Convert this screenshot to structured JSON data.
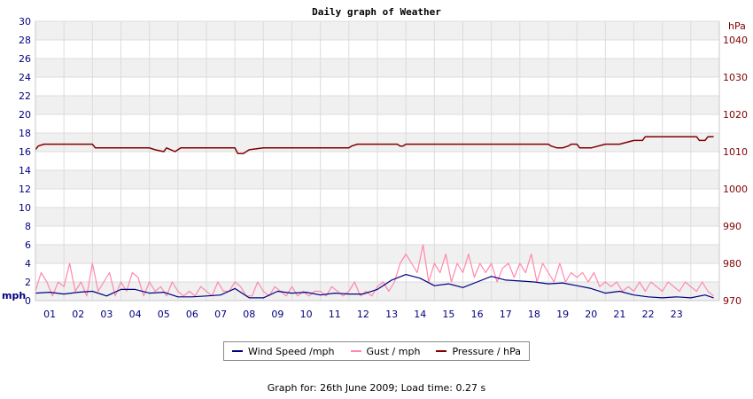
{
  "chart_data": {
    "type": "line",
    "title": "Daily graph of Weather",
    "ylabel_left": "mph",
    "ylabel_right": "hPa",
    "ylim_left": [
      0,
      30
    ],
    "yticks_left": [
      0,
      2,
      4,
      6,
      8,
      10,
      12,
      14,
      16,
      18,
      20,
      22,
      24,
      26,
      28,
      30
    ],
    "ylim_right": [
      970,
      1045
    ],
    "yticks_right": [
      970,
      980,
      990,
      1000,
      1010,
      1020,
      1030,
      1040
    ],
    "xlim": [
      0,
      24
    ],
    "x_ticks": [
      "01",
      "02",
      "03",
      "04",
      "05",
      "06",
      "07",
      "08",
      "09",
      "10",
      "11",
      "12",
      "13",
      "14",
      "15",
      "16",
      "17",
      "18",
      "19",
      "20",
      "21",
      "22",
      "23"
    ],
    "grid": true,
    "legend": "bottom",
    "series": [
      {
        "name": "Wind Speed /mph",
        "color": "#000080",
        "axis": "left",
        "x": [
          0.0,
          0.5,
          1.0,
          1.5,
          2.0,
          2.5,
          3.0,
          3.5,
          4.0,
          4.5,
          5.0,
          5.5,
          6.0,
          6.5,
          7.0,
          7.5,
          8.0,
          8.5,
          9.0,
          9.5,
          10.0,
          10.5,
          11.0,
          11.5,
          12.0,
          12.5,
          13.0,
          13.5,
          14.0,
          14.5,
          15.0,
          15.5,
          16.0,
          16.5,
          17.0,
          17.5,
          18.0,
          18.5,
          19.0,
          19.5,
          20.0,
          20.5,
          21.0,
          21.5,
          22.0,
          22.5,
          23.0,
          23.5,
          23.8
        ],
        "values": [
          0.8,
          0.9,
          0.7,
          0.9,
          1.0,
          0.5,
          1.2,
          1.2,
          0.8,
          0.9,
          0.4,
          0.4,
          0.5,
          0.6,
          1.3,
          0.3,
          0.3,
          1.0,
          0.8,
          0.9,
          0.6,
          0.8,
          0.7,
          0.7,
          1.2,
          2.2,
          2.8,
          2.4,
          1.6,
          1.8,
          1.4,
          2.0,
          2.6,
          2.2,
          2.1,
          2.0,
          1.8,
          1.9,
          1.6,
          1.3,
          0.8,
          1.0,
          0.6,
          0.4,
          0.3,
          0.4,
          0.3,
          0.6,
          0.3
        ]
      },
      {
        "name": "Gust / mph",
        "color": "#ff88aa",
        "axis": "left",
        "x": [
          0.0,
          0.2,
          0.4,
          0.6,
          0.8,
          1.0,
          1.2,
          1.4,
          1.6,
          1.8,
          2.0,
          2.2,
          2.4,
          2.6,
          2.8,
          3.0,
          3.2,
          3.4,
          3.6,
          3.8,
          4.0,
          4.2,
          4.4,
          4.6,
          4.8,
          5.0,
          5.2,
          5.4,
          5.6,
          5.8,
          6.0,
          6.2,
          6.4,
          6.6,
          6.8,
          7.0,
          7.2,
          7.4,
          7.6,
          7.8,
          8.0,
          8.2,
          8.4,
          8.6,
          8.8,
          9.0,
          9.2,
          9.4,
          9.6,
          9.8,
          10.0,
          10.2,
          10.4,
          10.6,
          10.8,
          11.0,
          11.2,
          11.4,
          11.6,
          11.8,
          12.0,
          12.2,
          12.4,
          12.6,
          12.8,
          13.0,
          13.2,
          13.4,
          13.6,
          13.8,
          14.0,
          14.2,
          14.4,
          14.6,
          14.8,
          15.0,
          15.2,
          15.4,
          15.6,
          15.8,
          16.0,
          16.2,
          16.4,
          16.6,
          16.8,
          17.0,
          17.2,
          17.4,
          17.6,
          17.8,
          18.0,
          18.2,
          18.4,
          18.6,
          18.8,
          19.0,
          19.2,
          19.4,
          19.6,
          19.8,
          20.0,
          20.2,
          20.4,
          20.6,
          20.8,
          21.0,
          21.2,
          21.4,
          21.6,
          21.8,
          22.0,
          22.2,
          22.4,
          22.6,
          22.8,
          23.0,
          23.2,
          23.4,
          23.6,
          23.8
        ],
        "values": [
          1.0,
          3.0,
          2.0,
          0.5,
          2.0,
          1.5,
          4.0,
          1.0,
          2.0,
          0.5,
          4.0,
          1.0,
          2.0,
          3.0,
          0.5,
          2.0,
          1.0,
          3.0,
          2.5,
          0.5,
          2.0,
          1.0,
          1.5,
          0.5,
          2.0,
          1.0,
          0.5,
          1.0,
          0.5,
          1.5,
          1.0,
          0.5,
          2.0,
          1.0,
          1.0,
          2.0,
          1.5,
          0.5,
          0.5,
          2.0,
          1.0,
          0.5,
          1.5,
          1.0,
          0.5,
          1.5,
          0.5,
          1.0,
          0.5,
          1.0,
          1.0,
          0.5,
          1.5,
          1.0,
          0.5,
          1.0,
          2.0,
          0.5,
          1.0,
          0.5,
          1.5,
          2.0,
          1.0,
          2.0,
          4.0,
          5.0,
          4.0,
          3.0,
          6.0,
          2.0,
          4.0,
          3.0,
          5.0,
          2.0,
          4.0,
          3.0,
          5.0,
          2.5,
          4.0,
          3.0,
          4.0,
          2.0,
          3.5,
          4.0,
          2.5,
          4.0,
          3.0,
          5.0,
          2.0,
          4.0,
          3.0,
          2.0,
          4.0,
          2.0,
          3.0,
          2.5,
          3.0,
          2.0,
          3.0,
          1.5,
          2.0,
          1.5,
          2.0,
          1.0,
          1.5,
          1.0,
          2.0,
          1.0,
          2.0,
          1.5,
          1.0,
          2.0,
          1.5,
          1.0,
          2.0,
          1.5,
          1.0,
          2.0,
          1.0,
          0.5
        ]
      },
      {
        "name": "Pressure / hPa",
        "color": "#800000",
        "axis": "right",
        "x": [
          0.0,
          0.1,
          0.3,
          1.0,
          2.0,
          2.1,
          3.0,
          4.0,
          4.2,
          4.5,
          4.6,
          4.9,
          5.0,
          5.1,
          5.5,
          6.0,
          7.0,
          7.1,
          7.3,
          7.5,
          8.0,
          9.0,
          10.0,
          11.0,
          11.1,
          11.3,
          12.0,
          12.7,
          12.8,
          12.9,
          13.0,
          13.5,
          14.0,
          15.0,
          16.0,
          17.0,
          18.0,
          18.1,
          18.3,
          18.5,
          18.7,
          18.8,
          19.0,
          19.1,
          19.5,
          20.0,
          20.1,
          20.5,
          21.0,
          21.3,
          21.4,
          22.0,
          23.0,
          23.2,
          23.3,
          23.5,
          23.6,
          23.8
        ],
        "values": [
          1010.5,
          1011.5,
          1012.0,
          1012.0,
          1012.0,
          1011.0,
          1011.0,
          1011.0,
          1010.5,
          1010.0,
          1011.0,
          1010.0,
          1010.5,
          1011.0,
          1011.0,
          1011.0,
          1011.0,
          1009.5,
          1009.5,
          1010.5,
          1011.0,
          1011.0,
          1011.0,
          1011.0,
          1011.5,
          1012.0,
          1012.0,
          1012.0,
          1011.5,
          1011.5,
          1012.0,
          1012.0,
          1012.0,
          1012.0,
          1012.0,
          1012.0,
          1012.0,
          1011.5,
          1011.0,
          1011.0,
          1011.5,
          1012.0,
          1012.0,
          1011.0,
          1011.0,
          1012.0,
          1012.0,
          1012.0,
          1013.0,
          1013.0,
          1014.0,
          1014.0,
          1014.0,
          1014.0,
          1013.0,
          1013.0,
          1014.0,
          1014.0
        ]
      }
    ]
  },
  "footer": "Graph for: 26th June 2009; Load time: 0.27 s"
}
